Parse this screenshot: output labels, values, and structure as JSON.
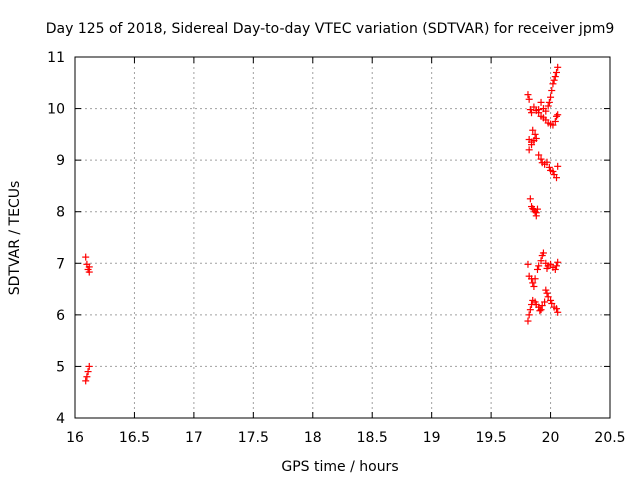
{
  "chart_data": {
    "type": "scatter",
    "title": "Day 125 of 2018, Sidereal Day-to-day VTEC variation (SDTVAR) for receiver jpm9",
    "xlabel": "GPS time / hours",
    "ylabel": "SDTVAR / TECUs",
    "xlim": [
      16,
      20.5
    ],
    "ylim": [
      4,
      11
    ],
    "xticks": [
      "16",
      "16.5",
      "17",
      "17.5",
      "18",
      "18.5",
      "19",
      "19.5",
      "20",
      "20.5"
    ],
    "yticks": [
      "4",
      "5",
      "6",
      "7",
      "8",
      "9",
      "10",
      "11"
    ],
    "grid": true,
    "marker": "+",
    "color": "#ff0000",
    "series": [
      {
        "name": "SDTVAR",
        "points": [
          [
            16.09,
            7.12
          ],
          [
            16.1,
            6.98
          ],
          [
            16.11,
            6.88
          ],
          [
            16.12,
            6.83
          ],
          [
            16.12,
            6.93
          ],
          [
            16.09,
            4.72
          ],
          [
            16.1,
            4.8
          ],
          [
            16.11,
            4.9
          ],
          [
            16.12,
            5.0
          ],
          [
            19.81,
            10.27
          ],
          [
            19.82,
            10.18
          ],
          [
            19.83,
            9.98
          ],
          [
            19.84,
            9.92
          ],
          [
            19.86,
            10.03
          ],
          [
            19.88,
            9.96
          ],
          [
            19.9,
            9.98
          ],
          [
            19.92,
            10.12
          ],
          [
            19.94,
            10.0
          ],
          [
            19.96,
            9.95
          ],
          [
            19.98,
            10.05
          ],
          [
            19.99,
            10.12
          ],
          [
            20.0,
            10.22
          ],
          [
            20.01,
            10.35
          ],
          [
            20.02,
            10.48
          ],
          [
            20.03,
            10.55
          ],
          [
            20.04,
            10.62
          ],
          [
            20.05,
            10.7
          ],
          [
            20.06,
            10.8
          ],
          [
            19.9,
            9.92
          ],
          [
            19.92,
            9.85
          ],
          [
            19.94,
            9.82
          ],
          [
            19.96,
            9.78
          ],
          [
            19.98,
            9.72
          ],
          [
            20.0,
            9.7
          ],
          [
            20.02,
            9.68
          ],
          [
            20.04,
            9.75
          ],
          [
            20.05,
            9.85
          ],
          [
            20.06,
            9.88
          ],
          [
            19.82,
            9.4
          ],
          [
            19.84,
            9.35
          ],
          [
            19.86,
            9.38
          ],
          [
            19.88,
            9.42
          ],
          [
            19.85,
            9.58
          ],
          [
            19.87,
            9.5
          ],
          [
            19.82,
            9.2
          ],
          [
            19.84,
            9.3
          ],
          [
            19.9,
            9.1
          ],
          [
            19.92,
            9.02
          ],
          [
            19.93,
            8.95
          ],
          [
            19.95,
            8.92
          ],
          [
            19.97,
            8.96
          ],
          [
            19.99,
            8.86
          ],
          [
            20.0,
            8.8
          ],
          [
            20.02,
            8.78
          ],
          [
            20.03,
            8.72
          ],
          [
            20.05,
            8.66
          ],
          [
            20.06,
            8.88
          ],
          [
            19.83,
            8.25
          ],
          [
            19.84,
            8.1
          ],
          [
            19.85,
            8.06
          ],
          [
            19.86,
            8.04
          ],
          [
            19.87,
            8.0
          ],
          [
            19.88,
            7.98
          ],
          [
            19.89,
            8.05
          ],
          [
            19.88,
            7.92
          ],
          [
            19.81,
            6.98
          ],
          [
            19.82,
            6.75
          ],
          [
            19.84,
            6.7
          ],
          [
            19.85,
            6.62
          ],
          [
            19.86,
            6.55
          ],
          [
            19.87,
            6.7
          ],
          [
            19.89,
            6.88
          ],
          [
            19.9,
            6.95
          ],
          [
            19.92,
            7.05
          ],
          [
            19.93,
            7.15
          ],
          [
            19.94,
            7.2
          ],
          [
            19.96,
            7.0
          ],
          [
            19.97,
            6.9
          ],
          [
            19.98,
            6.95
          ],
          [
            20.0,
            6.98
          ],
          [
            20.02,
            6.92
          ],
          [
            20.04,
            6.88
          ],
          [
            20.05,
            6.95
          ],
          [
            20.06,
            7.02
          ],
          [
            19.81,
            5.88
          ],
          [
            19.82,
            6.0
          ],
          [
            19.83,
            6.1
          ],
          [
            19.84,
            6.2
          ],
          [
            19.85,
            6.28
          ],
          [
            19.87,
            6.25
          ],
          [
            19.88,
            6.2
          ],
          [
            19.9,
            6.15
          ],
          [
            19.91,
            6.08
          ],
          [
            19.92,
            6.1
          ],
          [
            19.93,
            6.18
          ],
          [
            19.95,
            6.25
          ],
          [
            19.96,
            6.48
          ],
          [
            19.97,
            6.42
          ],
          [
            19.98,
            6.35
          ],
          [
            20.0,
            6.28
          ],
          [
            20.01,
            6.22
          ],
          [
            20.03,
            6.15
          ],
          [
            20.05,
            6.12
          ],
          [
            20.06,
            6.05
          ]
        ]
      }
    ]
  }
}
